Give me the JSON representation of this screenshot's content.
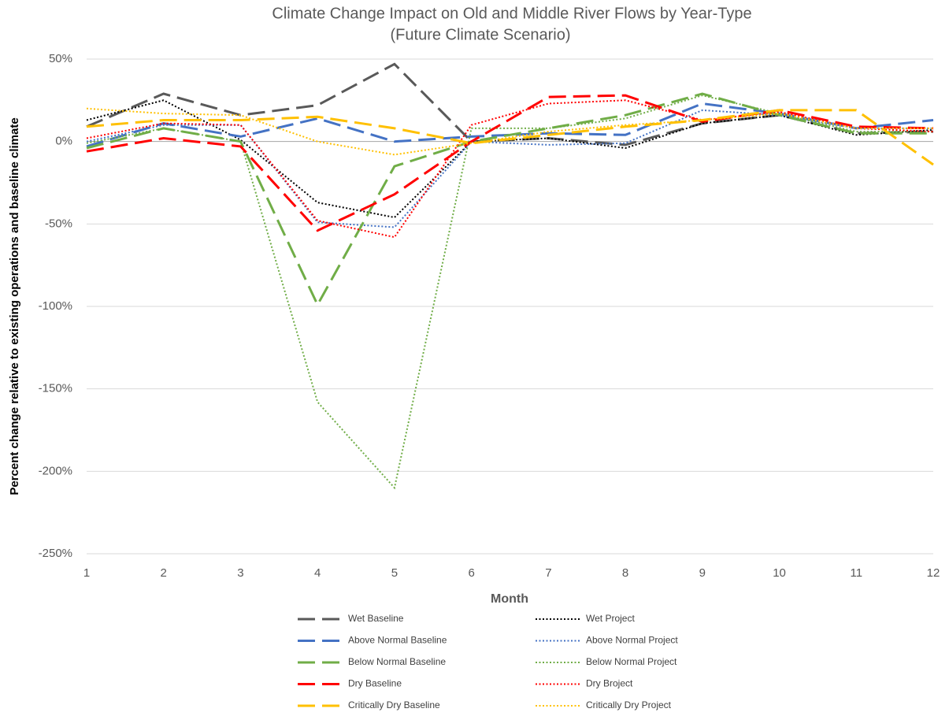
{
  "chart_data": {
    "type": "line",
    "title": "Climate Change Impact on Old and Middle River Flows by Year-Type",
    "subtitle": "(Future Climate Scenario)",
    "x_label": "Month",
    "y_label": "Percent change relative to existing operations and baseline climate",
    "x": [
      1,
      2,
      3,
      4,
      5,
      6,
      7,
      8,
      9,
      10,
      11,
      12
    ],
    "xlim": [
      1,
      12
    ],
    "xticks": [
      1,
      2,
      3,
      4,
      5,
      6,
      7,
      8,
      9,
      10,
      11,
      12
    ],
    "ylim": [
      -250,
      50
    ],
    "yticks": [
      {
        "value": -250,
        "label": "-250%"
      },
      {
        "value": -200,
        "label": "-200%"
      },
      {
        "value": -150,
        "label": "-150%"
      },
      {
        "value": -100,
        "label": "-100%"
      },
      {
        "value": -50,
        "label": "-50%"
      },
      {
        "value": 0,
        "label": "0%"
      },
      {
        "value": 50,
        "label": "50%"
      }
    ],
    "grid": true,
    "legend": "bottom",
    "series": [
      {
        "name": "Wet Baseline",
        "color": "#595959",
        "style": "dashed",
        "values": [
          9,
          29,
          16,
          22,
          47,
          0,
          2,
          -2,
          11,
          16,
          5,
          6
        ]
      },
      {
        "name": "Wet Project",
        "color": "#000000",
        "style": "dotted",
        "values": [
          13,
          25,
          1,
          -37,
          -46,
          0,
          2,
          -4,
          11,
          16,
          4,
          7
        ]
      },
      {
        "name": "Above Normal Baseline",
        "color": "#4472c4",
        "style": "dashed",
        "values": [
          -3,
          11,
          3,
          14,
          0,
          3,
          5,
          4,
          23,
          17,
          8,
          13
        ]
      },
      {
        "name": "Above Normal Project",
        "color": "#4472c4",
        "style": "dotted",
        "values": [
          0,
          10,
          10,
          -49,
          -52,
          0,
          -2,
          -1,
          19,
          16,
          8,
          8
        ]
      },
      {
        "name": "Below Normal Baseline",
        "color": "#70ad47",
        "style": "dashed",
        "values": [
          -4,
          8,
          0,
          -99,
          -15,
          0,
          8,
          16,
          29,
          16,
          5,
          5
        ]
      },
      {
        "name": "Below Normal Project",
        "color": "#70ad47",
        "style": "dotted",
        "values": [
          -1,
          8,
          0,
          -158,
          -210,
          8,
          8,
          14,
          28,
          17,
          6,
          6
        ]
      },
      {
        "name": "Dry Baseline",
        "color": "#ff0000",
        "style": "dashed",
        "values": [
          -6,
          2,
          -3,
          -54,
          -32,
          0,
          27,
          28,
          12,
          19,
          9,
          8
        ]
      },
      {
        "name": "Dry Broject",
        "color": "#ff0000",
        "style": "dotted",
        "values": [
          2,
          11,
          10,
          -48,
          -58,
          10,
          23,
          25,
          13,
          18,
          8,
          6
        ]
      },
      {
        "name": "Critically Dry Baseline",
        "color": "#ffc000",
        "style": "dashed",
        "values": [
          9,
          13,
          13,
          15,
          8,
          -1,
          4,
          9,
          13,
          19,
          19,
          -14
        ]
      },
      {
        "name": "Critically Dry Project",
        "color": "#ffc000",
        "style": "dotted",
        "values": [
          20,
          17,
          16,
          0,
          -8,
          -1,
          6,
          10,
          13,
          17,
          8,
          8
        ]
      }
    ]
  }
}
